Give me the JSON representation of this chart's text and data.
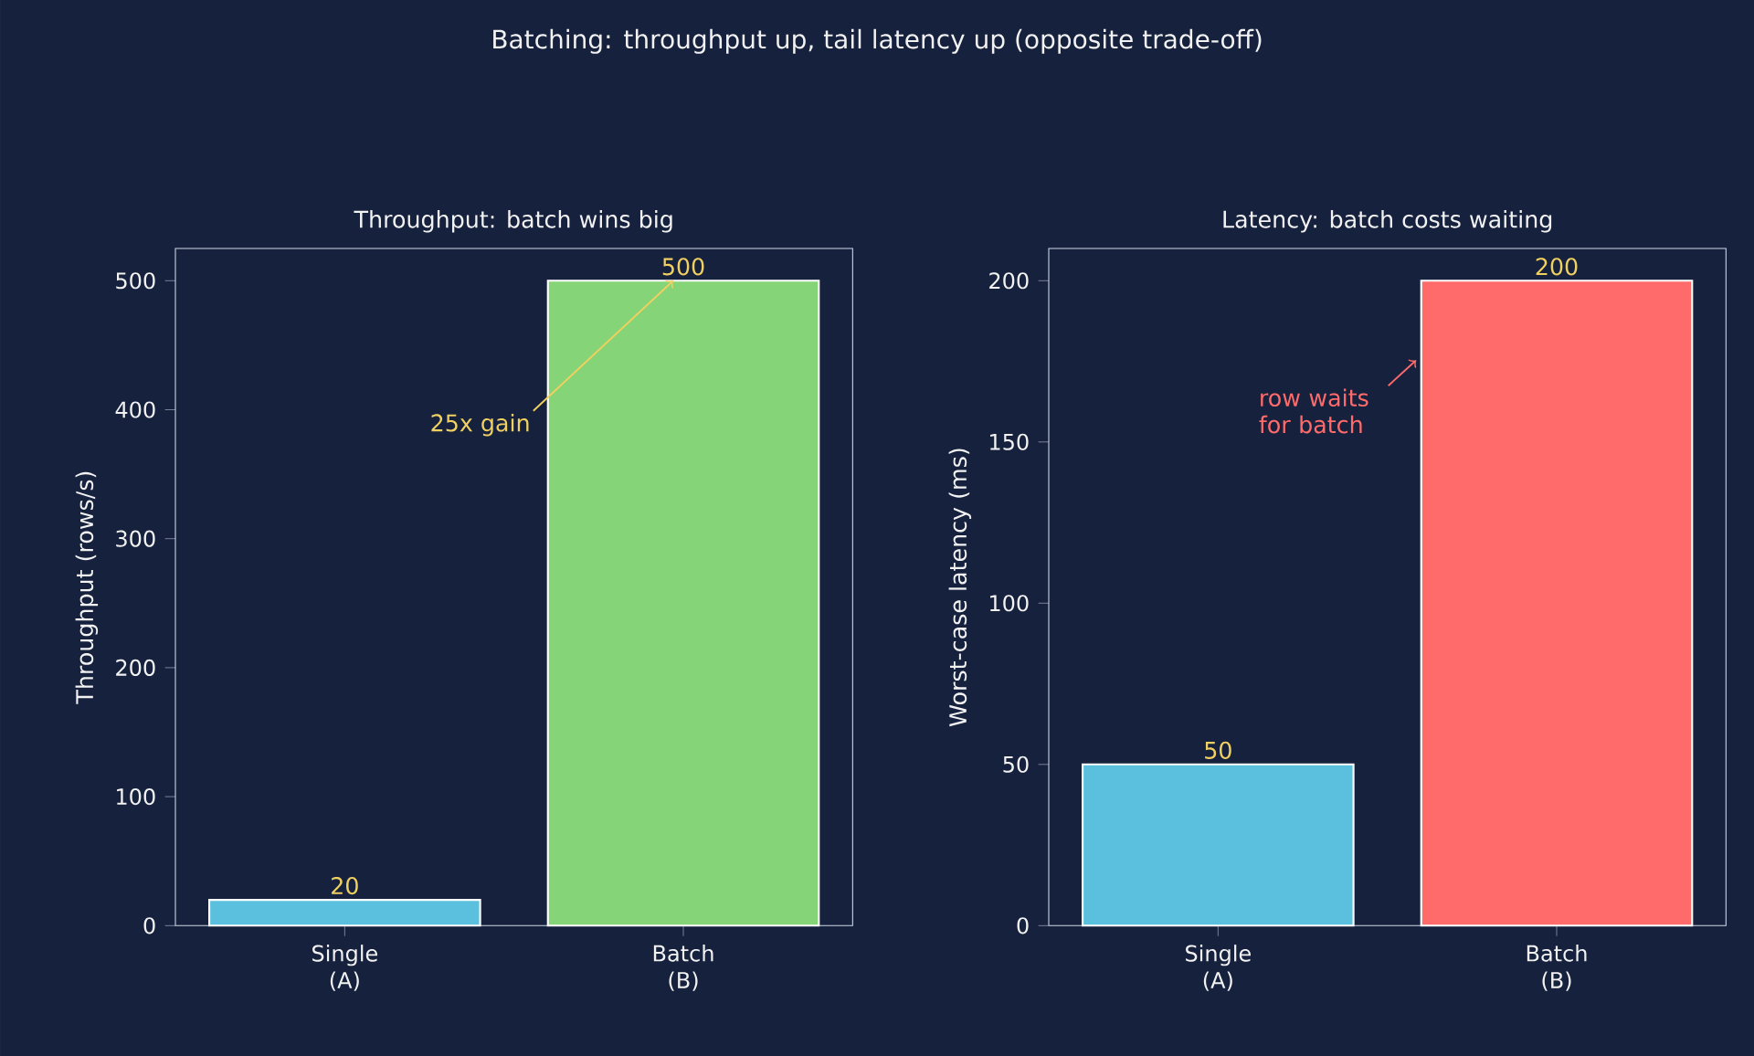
{
  "chart_data": [
    {
      "type": "bar",
      "title": "Throughput: batch wins big",
      "ylabel": "Throughput (rows/s)",
      "categories": [
        "Single (A)",
        "Batch (B)"
      ],
      "values": [
        20,
        500
      ],
      "colors": [
        "#5bc0de",
        "#85d477"
      ],
      "data_labels": true,
      "ylim": [
        0,
        525
      ],
      "yticks": [
        0,
        100,
        200,
        300,
        400,
        500
      ],
      "annotations": [
        "Batching: throughput up, tail latency up (opposite trade-off)",
        {
          "text": "25x gain",
          "x": "Batch (B)",
          "y": 500
        }
      ]
    },
    {
      "type": "bar",
      "title": "Latency: batch costs waiting",
      "ylabel": "Worst-case latency (ms)",
      "categories": [
        "Single (A)",
        "Batch (B)"
      ],
      "values": [
        50,
        200
      ],
      "colors": [
        "#5bc0de",
        "#ff6b6b"
      ],
      "data_labels": true,
      "ylim": [
        0,
        210
      ],
      "yticks": [
        0,
        50,
        100,
        150,
        200
      ],
      "annotations": [
        "row waits for batch"
      ]
    }
  ]
}
